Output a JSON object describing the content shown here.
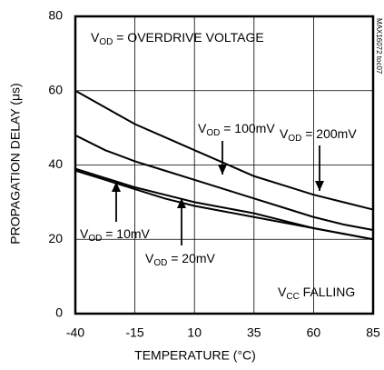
{
  "chart_data": {
    "type": "line",
    "xlabel": "TEMPERATURE (°C)",
    "ylabel": "PROPAGATION DELAY (μs)",
    "x": [
      -40,
      -27.5,
      -15,
      -2.5,
      10,
      22.5,
      35,
      47.5,
      60,
      72.5,
      85
    ],
    "series": [
      {
        "color": "#000000",
        "label": [
          "V",
          "OD",
          " = 200mV"
        ],
        "values": [
          60,
          55.5,
          51,
          47.5,
          44,
          40.5,
          37,
          34.5,
          32,
          30,
          28
        ]
      },
      {
        "color": "#000000",
        "label": [
          "V",
          "OD",
          " = 100mV"
        ],
        "values": [
          48,
          44,
          41,
          38.5,
          36,
          33.5,
          31,
          28.5,
          26,
          24,
          22.5
        ]
      },
      {
        "color": "#000000",
        "label": [
          "V",
          "OD",
          " = 20mV"
        ],
        "values": [
          39,
          36.5,
          34,
          32,
          30,
          28.5,
          27,
          25,
          23,
          21.5,
          20
        ]
      },
      {
        "color": "#000000",
        "label": [
          "V",
          "OD",
          " = 10mV"
        ],
        "values": [
          38.5,
          36,
          33.5,
          31,
          29,
          27.5,
          26,
          24.5,
          23,
          21.5,
          20
        ]
      }
    ],
    "annotations": [
      [
        "V",
        "OD",
        " = OVERDRIVE VOLTAGE"
      ],
      [
        "V",
        "CC",
        " FALLING"
      ]
    ],
    "side_note": "MAX16072 toc07",
    "xlim": [
      -40,
      85
    ],
    "xticks": [
      -40,
      -15,
      10,
      35,
      60,
      85
    ],
    "ylim": [
      0,
      80
    ],
    "yticks": [
      0,
      20,
      40,
      60,
      80
    ],
    "grid": true
  }
}
